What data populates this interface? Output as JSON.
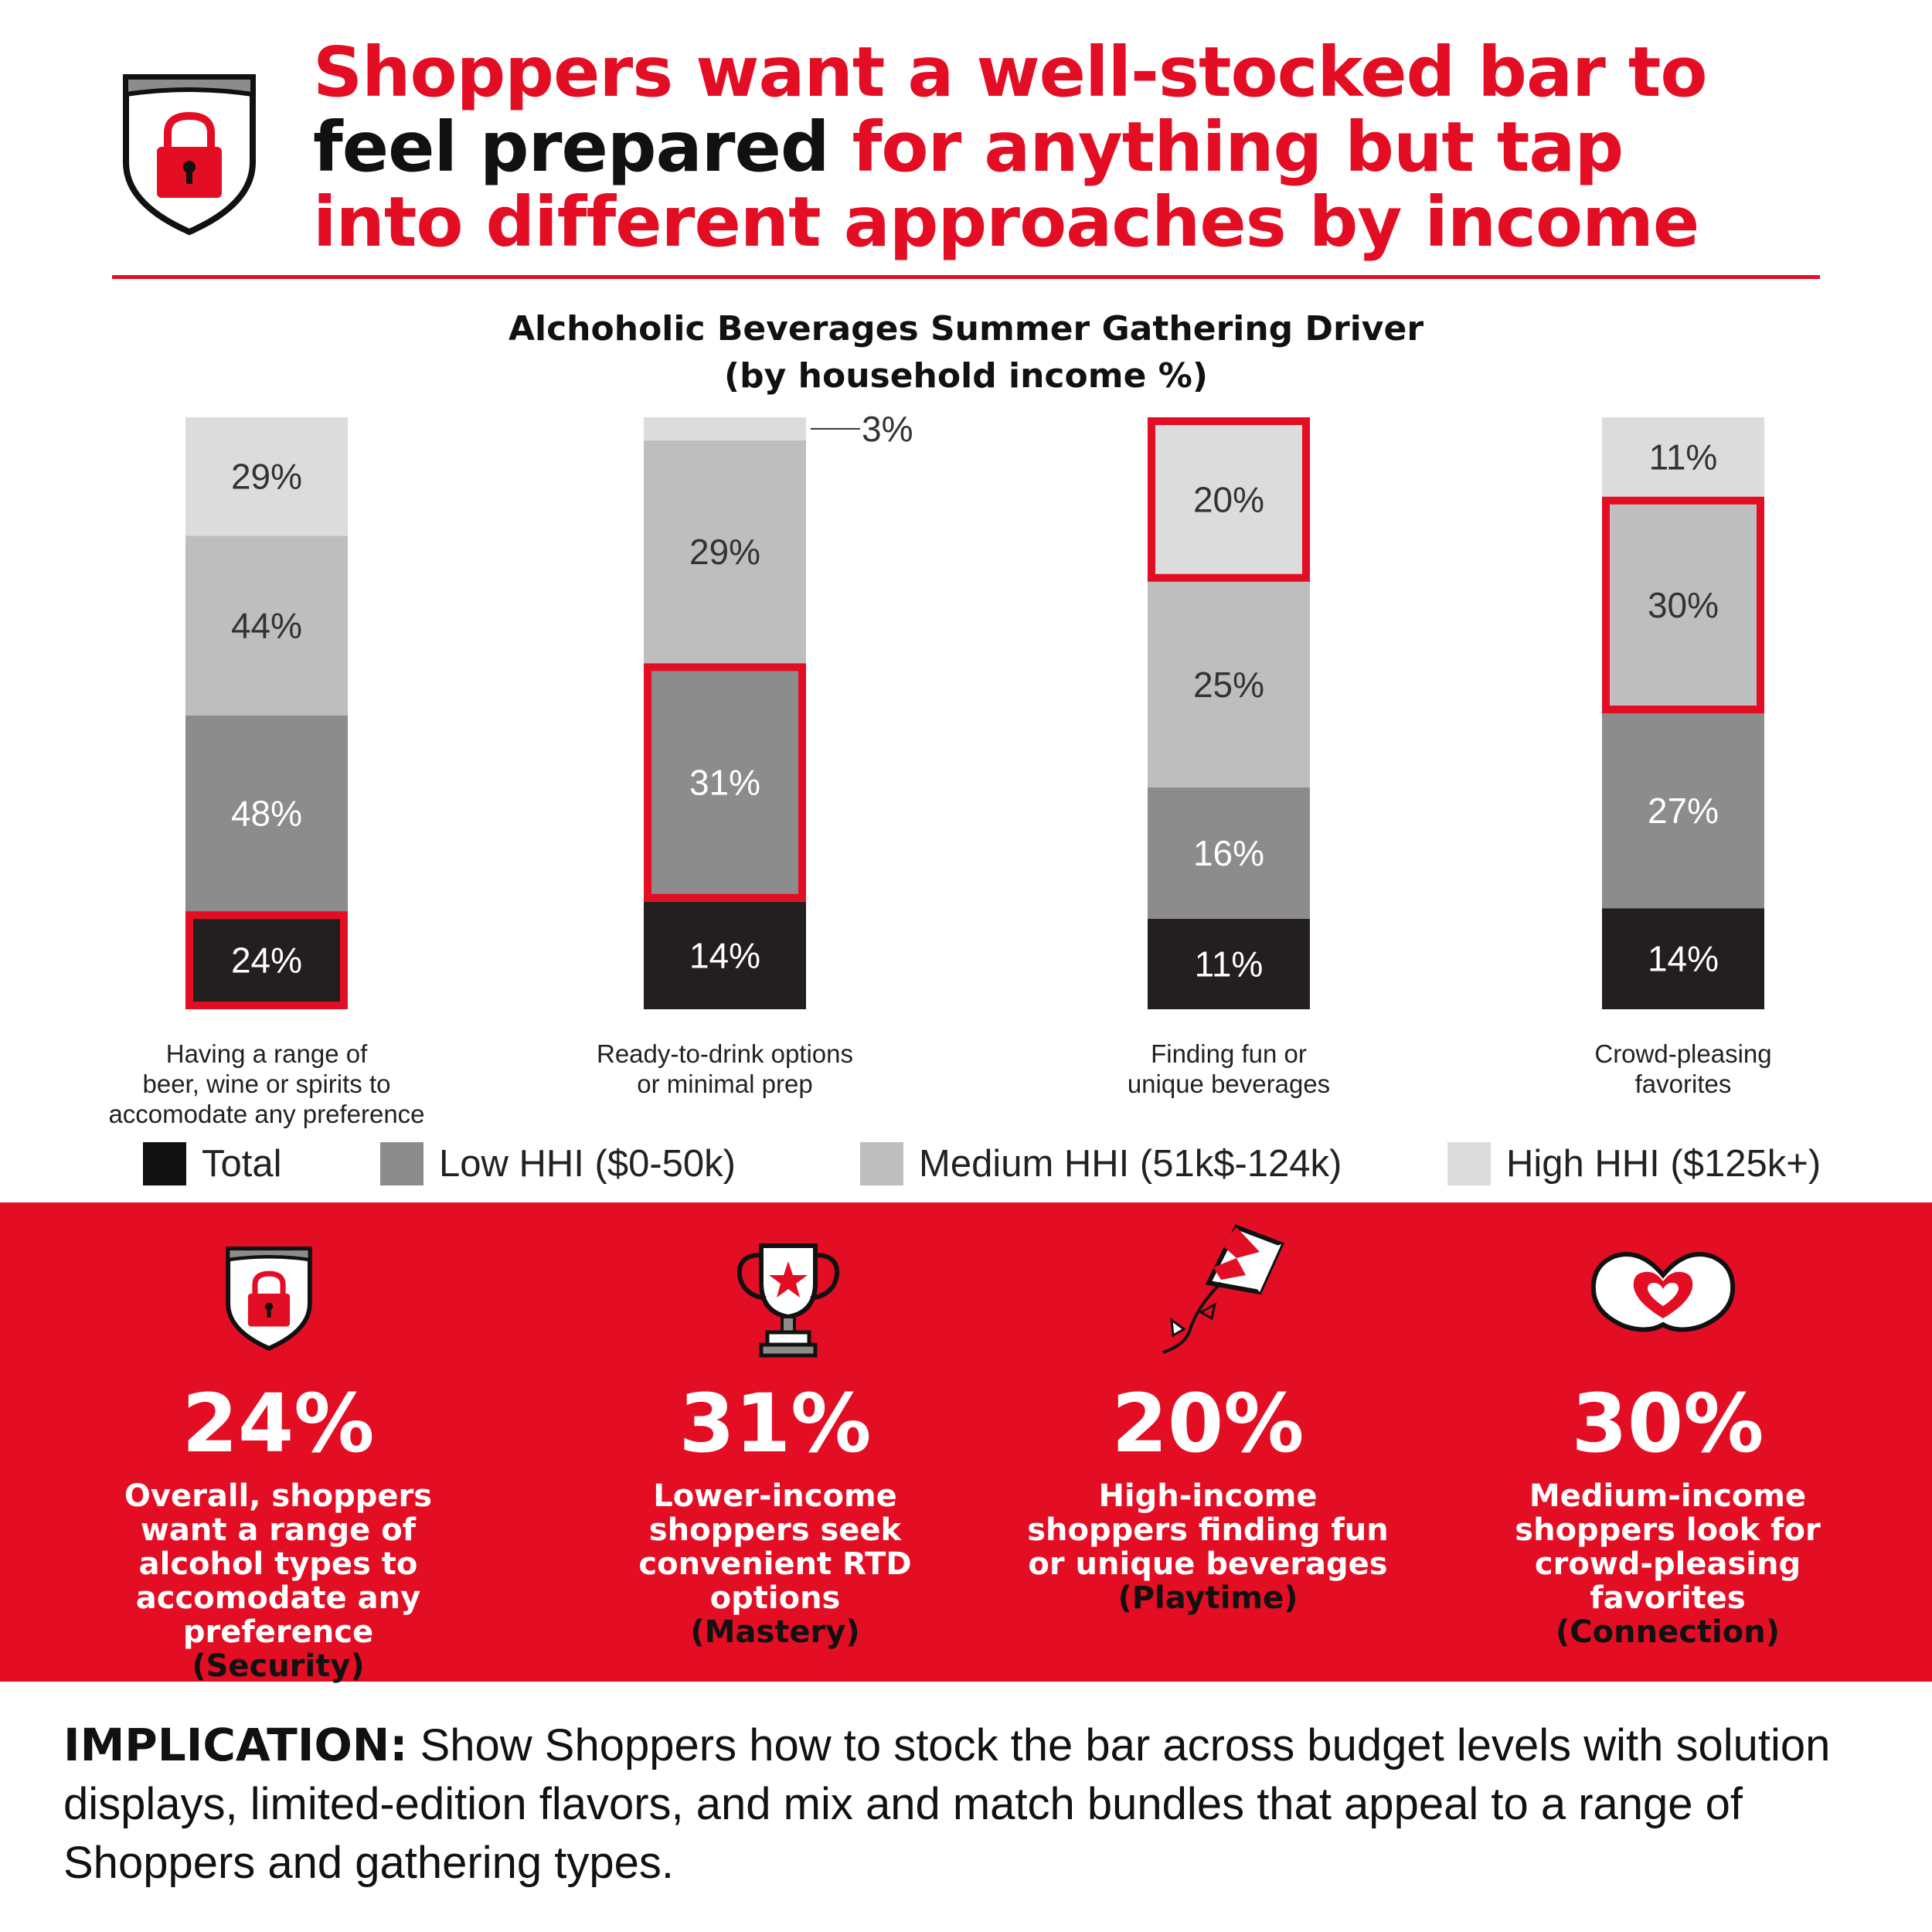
{
  "headline": {
    "line1": "Shoppers want a well-stocked bar to",
    "line2_black": "feel prepared",
    "line2_red": " for anything but tap",
    "line3": "into different approaches by income"
  },
  "chart_data": {
    "type": "stacked-bar",
    "title": "Alchoholic Beverages Summer Gathering Driver",
    "subtitle": "(by household income %)",
    "categories": [
      "Having a range of beer, wine or spirits to accomodate any preference",
      "Ready-to-drink options or minimal prep",
      "Finding fun or unique beverages",
      "Crowd-pleasing favorites"
    ],
    "category_lines": [
      [
        "Having a range of",
        "beer, wine or spirits to",
        "accomodate any preference"
      ],
      [
        "Ready-to-drink options",
        "or minimal prep"
      ],
      [
        "Finding fun or",
        "unique beverages"
      ],
      [
        "Crowd-pleasing",
        "favorites"
      ]
    ],
    "series": [
      {
        "name": "Total",
        "color": "#231f20",
        "values": [
          24,
          14,
          11,
          14
        ]
      },
      {
        "name": "Low HHI ($0-50k)",
        "color": "#8c8c8c",
        "values": [
          48,
          31,
          16,
          27
        ]
      },
      {
        "name": "Medium HHI (51k$-124k)",
        "color": "#bebebe",
        "values": [
          44,
          29,
          25,
          30
        ]
      },
      {
        "name": "High HHI ($125k+)",
        "color": "#dcdcdc",
        "values": [
          29,
          3,
          20,
          11
        ]
      }
    ],
    "highlighted": [
      {
        "category": 0,
        "series": 0
      },
      {
        "category": 1,
        "series": 1
      },
      {
        "category": 2,
        "series": 3
      },
      {
        "category": 3,
        "series": 2
      }
    ],
    "highlight_color": "#e30e24",
    "legend_position": "bottom",
    "grid": false
  },
  "stats": [
    {
      "pct": "24%",
      "desc": "Overall, shoppers want a range of alcohol types to accomodate any preference",
      "motive": "(Security)",
      "icon": "shield-lock-icon"
    },
    {
      "pct": "31%",
      "desc": "Lower-income shoppers seek convenient RTD options",
      "motive": "(Mastery)",
      "icon": "trophy-star-icon"
    },
    {
      "pct": "20%",
      "desc": "High-income shoppers finding fun or unique beverages",
      "motive": "(Playtime)",
      "icon": "kite-icon"
    },
    {
      "pct": "30%",
      "desc": "Medium-income shoppers look for crowd-pleasing favorites",
      "motive": "(Connection)",
      "icon": "heart-hands-icon"
    }
  ],
  "implication": {
    "label": "IMPLICATION:",
    "text": " Show Shoppers how to stock the bar across budget levels with solution displays, limited-edition flavors, and mix and match bundles that appeal to a range of Shoppers and gathering types."
  },
  "header_icon": "shield-lock-icon"
}
